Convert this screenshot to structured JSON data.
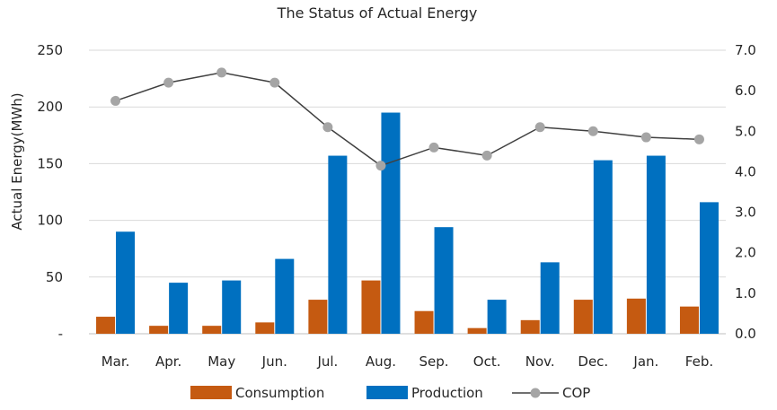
{
  "chart_data": {
    "type": "bar",
    "title": "The Status of Actual Energy",
    "xlabel": "",
    "ylabel": "Actual Energy(MWh)",
    "y2label": "",
    "categories": [
      "Mar.",
      "Apr.",
      "May",
      "Jun.",
      "Jul.",
      "Aug.",
      "Sep.",
      "Oct.",
      "Nov.",
      "Dec.",
      "Jan.",
      "Feb."
    ],
    "series": [
      {
        "name": "Consumption",
        "type": "bar",
        "axis": "left",
        "color": "#C55A11",
        "values": [
          15,
          7,
          7,
          10,
          30,
          47,
          20,
          5,
          12,
          30,
          31,
          24
        ]
      },
      {
        "name": "Production",
        "type": "bar",
        "axis": "left",
        "color": "#0070C0",
        "values": [
          90,
          45,
          47,
          66,
          157,
          195,
          94,
          30,
          63,
          153,
          157,
          116
        ]
      },
      {
        "name": "COP",
        "type": "line",
        "axis": "right",
        "color": "#A5A5A5",
        "line_color": "#404040",
        "values": [
          5.75,
          6.2,
          6.45,
          6.2,
          5.1,
          4.15,
          4.6,
          4.4,
          5.1,
          5.0,
          4.85,
          4.8
        ]
      }
    ],
    "ylim": [
      0,
      250
    ],
    "yticks": [
      0,
      50,
      100,
      150,
      200,
      250
    ],
    "ytick_labels": [
      "-",
      "50",
      "100",
      "150",
      "200",
      "250"
    ],
    "y2lim": [
      0,
      7
    ],
    "y2ticks": [
      0,
      1,
      2,
      3,
      4,
      5,
      6,
      7
    ],
    "y2tick_labels": [
      "0.0",
      "1.0",
      "2.0",
      "3.0",
      "4.0",
      "5.0",
      "6.0",
      "7.0"
    ],
    "grid": true,
    "legend": "bottom-center"
  }
}
